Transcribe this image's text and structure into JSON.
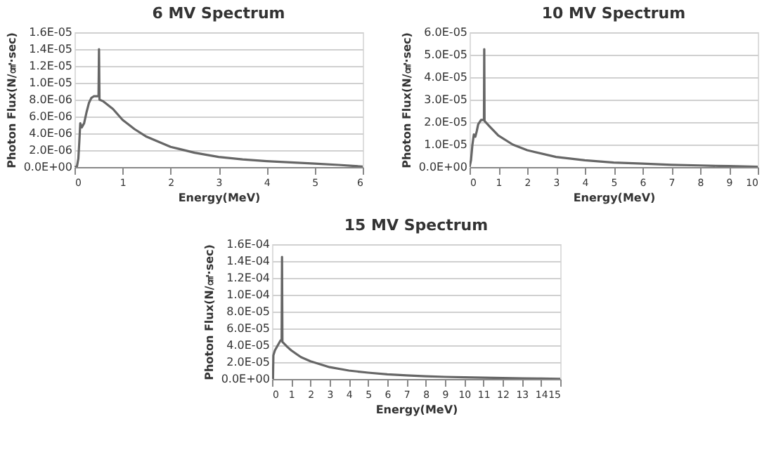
{
  "chart_data": [
    {
      "type": "line",
      "title": "6 MV Spectrum",
      "xlabel": "Energy(MeV)",
      "ylabel": "Photon Flux(N/㎠·sec)",
      "grid": "y",
      "marker": "none",
      "line_style": "solid",
      "xlim": [
        0,
        6
      ],
      "xticks": [
        0,
        1,
        2,
        3,
        4,
        5,
        6
      ],
      "ylim": [
        0,
        1.6e-05
      ],
      "yticks": [
        {
          "value": 0,
          "label": "0.0E+00"
        },
        {
          "value": 2e-06,
          "label": "2.0E-06"
        },
        {
          "value": 4e-06,
          "label": "4.0E-06"
        },
        {
          "value": 6e-06,
          "label": "6.0E-06"
        },
        {
          "value": 8e-06,
          "label": "8.0E-06"
        },
        {
          "value": 1e-05,
          "label": "1.0E-05"
        },
        {
          "value": 1.2e-05,
          "label": "1.2E-05"
        },
        {
          "value": 1.4e-05,
          "label": "1.4E-05"
        },
        {
          "value": 1.6e-05,
          "label": "1.6E-05"
        }
      ],
      "series": [
        {
          "color": "#666666",
          "x": [
            0,
            0.05,
            0.08,
            0.1,
            0.12,
            0.15,
            0.2,
            0.25,
            0.3,
            0.35,
            0.4,
            0.5,
            0.51,
            0.52,
            0.6,
            0.8,
            1,
            1.25,
            1.5,
            2,
            2.5,
            3,
            3.5,
            4,
            4.5,
            5,
            5.5,
            6
          ],
          "values": [
            0,
            5e-08,
            1e-06,
            3e-06,
            5.2e-06,
            4.7e-06,
            5.2e-06,
            6.5e-06,
            7.6e-06,
            8.2e-06,
            8.4e-06,
            8.4e-06,
            1.4e-05,
            8e-06,
            7.8e-06,
            6.9e-06,
            5.6e-06,
            4.5e-06,
            3.6e-06,
            2.4e-06,
            1.7e-06,
            1.2e-06,
            9e-07,
            7e-07,
            5.5e-07,
            4e-07,
            2.5e-07,
            5e-08
          ]
        }
      ]
    },
    {
      "type": "line",
      "title": "10 MV Spectrum",
      "xlabel": "Energy(MeV)",
      "ylabel": "Photon Flux(N/㎠·sec)",
      "grid": "y",
      "marker": "none",
      "line_style": "solid",
      "xlim": [
        0,
        10
      ],
      "xticks": [
        0,
        1,
        2,
        3,
        4,
        5,
        6,
        7,
        8,
        9,
        10
      ],
      "ylim": [
        0,
        6e-05
      ],
      "yticks": [
        {
          "value": 0,
          "label": "0.0E+00"
        },
        {
          "value": 1e-05,
          "label": "1.0E-05"
        },
        {
          "value": 2e-05,
          "label": "2.0E-05"
        },
        {
          "value": 3e-05,
          "label": "3.0E-05"
        },
        {
          "value": 4e-05,
          "label": "4.0E-05"
        },
        {
          "value": 5e-05,
          "label": "5.0E-05"
        },
        {
          "value": 6e-05,
          "label": "6.0E-05"
        }
      ],
      "series": [
        {
          "color": "#666666",
          "x": [
            0,
            0.05,
            0.1,
            0.15,
            0.2,
            0.25,
            0.3,
            0.4,
            0.5,
            0.51,
            0.52,
            0.7,
            1,
            1.5,
            2,
            3,
            4,
            5,
            6,
            7,
            8,
            9,
            10
          ],
          "values": [
            0,
            3e-06,
            1e-05,
            1.45e-05,
            1.35e-05,
            1.6e-05,
            1.9e-05,
            2.1e-05,
            2.1e-05,
            5.25e-05,
            2.05e-05,
            1.8e-05,
            1.4e-05,
            1e-05,
            7.5e-06,
            4.5e-06,
            3e-06,
            2e-06,
            1.5e-06,
            1e-06,
            7e-07,
            4e-07,
            1e-07
          ]
        }
      ]
    },
    {
      "type": "line",
      "title": "15 MV Spectrum",
      "xlabel": "Energy(MeV)",
      "ylabel": "Photon Flux(N/㎠·sec)",
      "grid": "y",
      "marker": "none",
      "line_style": "solid",
      "xlim": [
        0,
        15
      ],
      "xticks": [
        0,
        1,
        2,
        3,
        4,
        5,
        6,
        7,
        8,
        9,
        10,
        11,
        12,
        13,
        14,
        15
      ],
      "ylim": [
        0,
        0.00016
      ],
      "yticks": [
        {
          "value": 0,
          "label": "0.0E+00"
        },
        {
          "value": 2e-05,
          "label": "2.0E-05"
        },
        {
          "value": 4e-05,
          "label": "4.0E-05"
        },
        {
          "value": 6e-05,
          "label": "6.0E-05"
        },
        {
          "value": 8e-05,
          "label": "8.0E-05"
        },
        {
          "value": 0.0001,
          "label": "1.0E-04"
        },
        {
          "value": 0.00012,
          "label": "1.2E-04"
        },
        {
          "value": 0.00014,
          "label": "1.4E-04"
        },
        {
          "value": 0.00016,
          "label": "1.6E-04"
        }
      ],
      "series": [
        {
          "color": "#666666",
          "x": [
            0.05,
            0.07,
            0.15,
            0.3,
            0.45,
            0.5,
            0.52,
            0.54,
            0.8,
            1,
            1.5,
            2,
            3,
            4,
            5,
            6,
            7,
            8,
            9,
            10,
            11,
            12,
            13,
            14,
            15
          ],
          "values": [
            0,
            2.8e-05,
            3.4e-05,
            4e-05,
            4.6e-05,
            4.6e-05,
            0.000145,
            4.4e-05,
            3.8e-05,
            3.4e-05,
            2.6e-05,
            2.1e-05,
            1.4e-05,
            1e-05,
            7.5e-06,
            5.5e-06,
            4.2e-06,
            3.3e-06,
            2.5e-06,
            2e-06,
            1.5e-06,
            1.2e-06,
            8e-07,
            5e-07,
            2e-07
          ]
        }
      ]
    }
  ]
}
